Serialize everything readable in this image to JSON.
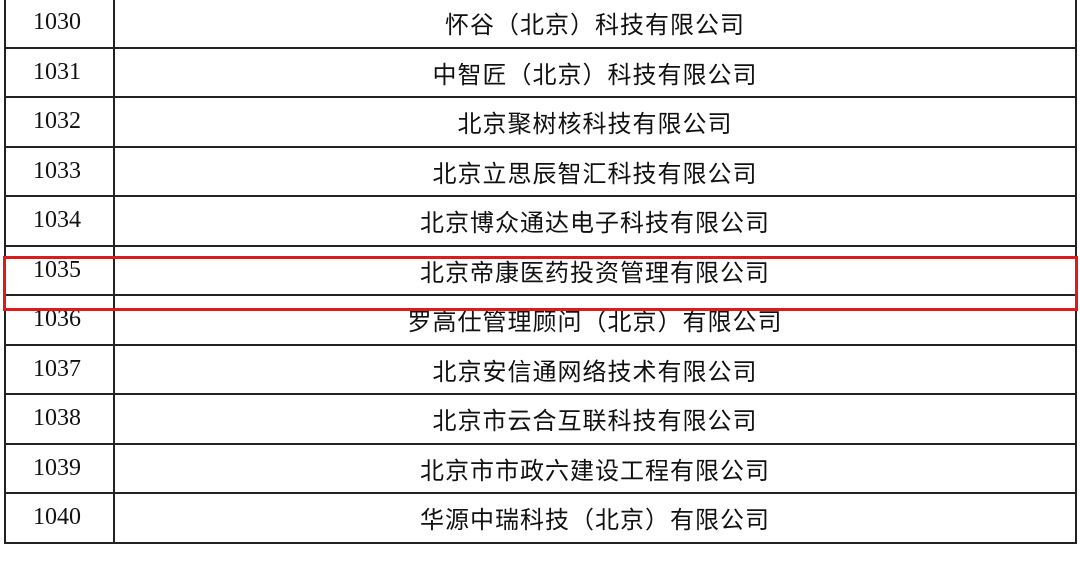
{
  "table": {
    "rows": [
      {
        "no": "1030",
        "name": "怀谷（北京）科技有限公司"
      },
      {
        "no": "1031",
        "name": "中智匠（北京）科技有限公司"
      },
      {
        "no": "1032",
        "name": "北京聚树核科技有限公司"
      },
      {
        "no": "1033",
        "name": "北京立思辰智汇科技有限公司"
      },
      {
        "no": "1034",
        "name": "北京博众通达电子科技有限公司"
      },
      {
        "no": "1035",
        "name": "北京帝康医药投资管理有限公司"
      },
      {
        "no": "1036",
        "name": "罗高仕管理顾问（北京）有限公司"
      },
      {
        "no": "1037",
        "name": "北京安信通网络技术有限公司"
      },
      {
        "no": "1038",
        "name": "北京市云合互联科技有限公司"
      },
      {
        "no": "1039",
        "name": "北京市市政六建设工程有限公司"
      },
      {
        "no": "1040",
        "name": "华源中瑞科技（北京）有限公司"
      }
    ],
    "highlighted_row": "1035",
    "highlight_color": "#e0191c"
  }
}
